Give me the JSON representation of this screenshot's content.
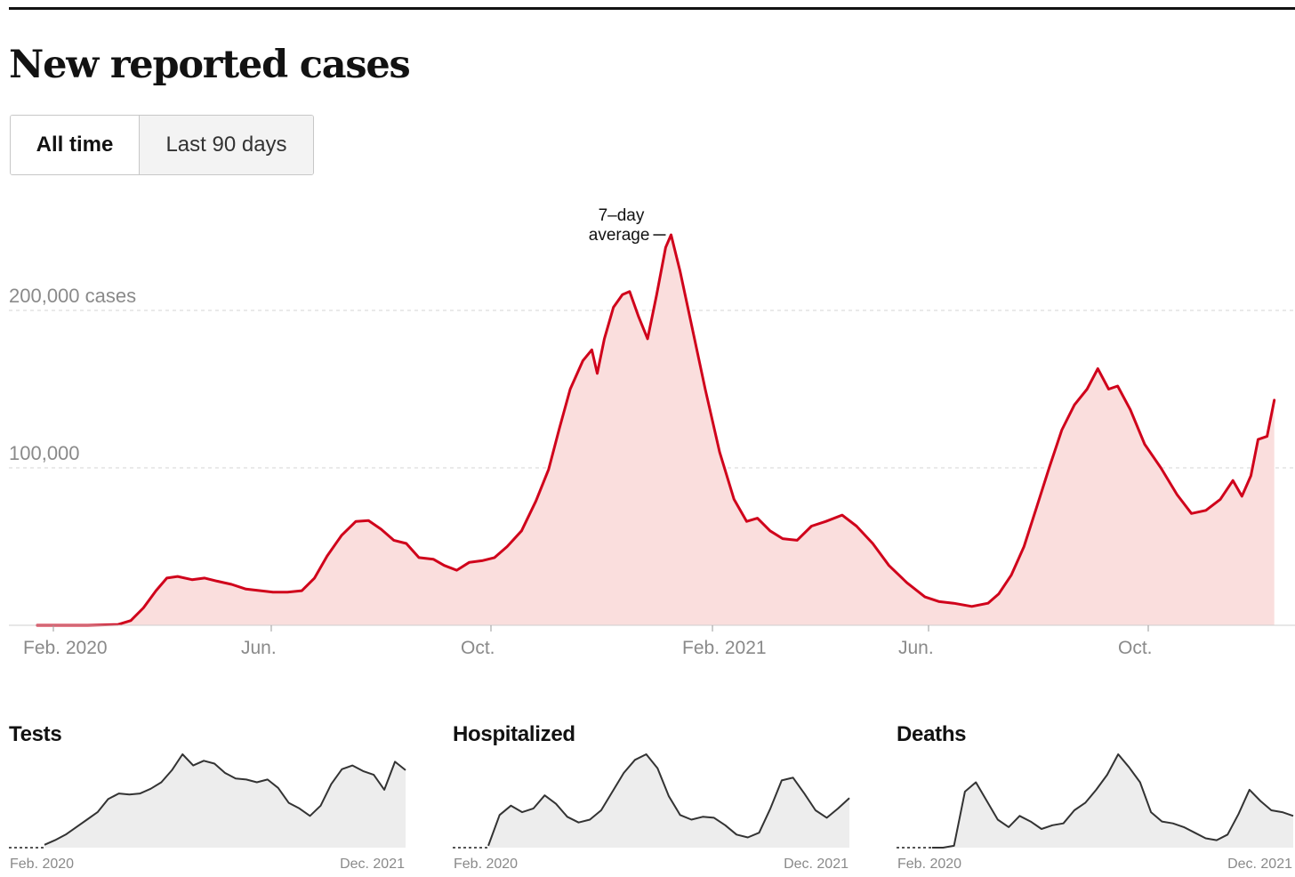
{
  "page": {
    "title": "New reported cases"
  },
  "toggle": {
    "options": [
      {
        "label": "All time",
        "active": true
      },
      {
        "label": "Last 90 days",
        "active": false
      }
    ]
  },
  "chart_data": [
    {
      "type": "area",
      "annotation": "7–day average",
      "y_unit": "cases",
      "ylim": [
        0,
        250000
      ],
      "y_ticks": [
        {
          "value": 100000,
          "label": "100,000"
        },
        {
          "value": 200000,
          "label": "200,000 cases"
        }
      ],
      "x_ticks": [
        {
          "date": "2020-02-01",
          "label": "Feb. 2020"
        },
        {
          "date": "2020-06-01",
          "label": "Jun."
        },
        {
          "date": "2020-10-01",
          "label": "Oct."
        },
        {
          "date": "2021-02-01",
          "label": "Feb. 2021"
        },
        {
          "date": "2021-06-01",
          "label": "Jun."
        },
        {
          "date": "2021-10-01",
          "label": "Oct."
        }
      ],
      "grid": "horizontal dashed",
      "colors": {
        "line": "#d0021b",
        "fill": "#fadedd"
      },
      "series": [
        {
          "points": [
            [
              "2020-01-23",
              0
            ],
            [
              "2020-02-20",
              0
            ],
            [
              "2020-03-08",
              500
            ],
            [
              "2020-03-15",
              3000
            ],
            [
              "2020-03-22",
              11000
            ],
            [
              "2020-03-29",
              22000
            ],
            [
              "2020-04-04",
              30000
            ],
            [
              "2020-04-10",
              31000
            ],
            [
              "2020-04-18",
              29000
            ],
            [
              "2020-04-25",
              30000
            ],
            [
              "2020-05-02",
              28000
            ],
            [
              "2020-05-10",
              26000
            ],
            [
              "2020-05-18",
              23000
            ],
            [
              "2020-05-26",
              22000
            ],
            [
              "2020-06-02",
              21000
            ],
            [
              "2020-06-10",
              21000
            ],
            [
              "2020-06-18",
              22000
            ],
            [
              "2020-06-25",
              30000
            ],
            [
              "2020-07-02",
              44000
            ],
            [
              "2020-07-10",
              57000
            ],
            [
              "2020-07-18",
              66000
            ],
            [
              "2020-07-25",
              66500
            ],
            [
              "2020-08-01",
              61000
            ],
            [
              "2020-08-08",
              54000
            ],
            [
              "2020-08-15",
              52000
            ],
            [
              "2020-08-22",
              43000
            ],
            [
              "2020-08-30",
              42000
            ],
            [
              "2020-09-05",
              38000
            ],
            [
              "2020-09-12",
              35000
            ],
            [
              "2020-09-19",
              40000
            ],
            [
              "2020-09-26",
              41000
            ],
            [
              "2020-10-03",
              43000
            ],
            [
              "2020-10-10",
              50000
            ],
            [
              "2020-10-18",
              60000
            ],
            [
              "2020-10-26",
              79000
            ],
            [
              "2020-11-02",
              99000
            ],
            [
              "2020-11-08",
              125000
            ],
            [
              "2020-11-14",
              150000
            ],
            [
              "2020-11-21",
              168000
            ],
            [
              "2020-11-26",
              175000
            ],
            [
              "2020-11-29",
              160000
            ],
            [
              "2020-12-03",
              182000
            ],
            [
              "2020-12-08",
              202000
            ],
            [
              "2020-12-13",
              210000
            ],
            [
              "2020-12-17",
              212000
            ],
            [
              "2020-12-22",
              196000
            ],
            [
              "2020-12-27",
              182000
            ],
            [
              "2021-01-01",
              210000
            ],
            [
              "2021-01-06",
              240000
            ],
            [
              "2021-01-09",
              248000
            ],
            [
              "2021-01-14",
              225000
            ],
            [
              "2021-01-20",
              193000
            ],
            [
              "2021-01-28",
              150000
            ],
            [
              "2021-02-05",
              110000
            ],
            [
              "2021-02-13",
              80000
            ],
            [
              "2021-02-20",
              66000
            ],
            [
              "2021-02-26",
              68000
            ],
            [
              "2021-03-05",
              60000
            ],
            [
              "2021-03-12",
              55000
            ],
            [
              "2021-03-20",
              54000
            ],
            [
              "2021-03-28",
              63000
            ],
            [
              "2021-04-05",
              66000
            ],
            [
              "2021-04-14",
              70000
            ],
            [
              "2021-04-22",
              63000
            ],
            [
              "2021-05-01",
              52000
            ],
            [
              "2021-05-10",
              38000
            ],
            [
              "2021-05-20",
              27000
            ],
            [
              "2021-05-30",
              18000
            ],
            [
              "2021-06-07",
              15000
            ],
            [
              "2021-06-15",
              14000
            ],
            [
              "2021-06-25",
              12000
            ],
            [
              "2021-07-04",
              14000
            ],
            [
              "2021-07-10",
              20000
            ],
            [
              "2021-07-17",
              32000
            ],
            [
              "2021-07-24",
              50000
            ],
            [
              "2021-07-31",
              75000
            ],
            [
              "2021-08-07",
              100000
            ],
            [
              "2021-08-14",
              124000
            ],
            [
              "2021-08-21",
              140000
            ],
            [
              "2021-08-28",
              150000
            ],
            [
              "2021-09-03",
              163000
            ],
            [
              "2021-09-09",
              150000
            ],
            [
              "2021-09-14",
              152000
            ],
            [
              "2021-09-21",
              137000
            ],
            [
              "2021-09-29",
              115000
            ],
            [
              "2021-10-08",
              100000
            ],
            [
              "2021-10-17",
              83000
            ],
            [
              "2021-10-25",
              71000
            ],
            [
              "2021-11-02",
              73000
            ],
            [
              "2021-11-10",
              80000
            ],
            [
              "2021-11-17",
              92000
            ],
            [
              "2021-11-22",
              82000
            ],
            [
              "2021-11-27",
              95000
            ],
            [
              "2021-12-01",
              118000
            ],
            [
              "2021-12-06",
              120000
            ],
            [
              "2021-12-10",
              143000
            ]
          ]
        }
      ]
    },
    {
      "type": "area",
      "title": "Tests",
      "x_ticks": [
        {
          "label": "Feb. 2020"
        },
        {
          "label": "Dec. 2021"
        }
      ],
      "colors": {
        "line": "#333333",
        "fill": "#ededed"
      },
      "series": [
        {
          "values": [
            0.03,
            0.08,
            0.14,
            0.22,
            0.3,
            0.38,
            0.52,
            0.58,
            0.57,
            0.58,
            0.63,
            0.7,
            0.83,
            1.0,
            0.88,
            0.93,
            0.9,
            0.8,
            0.74,
            0.73,
            0.7,
            0.73,
            0.64,
            0.48,
            0.42,
            0.34,
            0.45,
            0.68,
            0.84,
            0.88,
            0.82,
            0.78,
            0.62,
            0.92,
            0.83
          ]
        }
      ]
    },
    {
      "type": "area",
      "title": "Hospitalized",
      "x_ticks": [
        {
          "label": "Feb. 2020"
        },
        {
          "label": "Dec. 2021"
        }
      ],
      "colors": {
        "line": "#333333",
        "fill": "#ededed"
      },
      "series": [
        {
          "values": [
            0.02,
            0.35,
            0.45,
            0.38,
            0.42,
            0.56,
            0.47,
            0.33,
            0.27,
            0.3,
            0.4,
            0.6,
            0.8,
            0.94,
            1.0,
            0.85,
            0.55,
            0.35,
            0.3,
            0.33,
            0.32,
            0.24,
            0.14,
            0.11,
            0.16,
            0.42,
            0.72,
            0.75,
            0.58,
            0.4,
            0.32,
            0.42,
            0.53
          ]
        }
      ]
    },
    {
      "type": "area",
      "title": "Deaths",
      "x_ticks": [
        {
          "label": "Feb. 2020"
        },
        {
          "label": "Dec. 2021"
        }
      ],
      "colors": {
        "line": "#333333",
        "fill": "#ededed"
      },
      "series": [
        {
          "values": [
            0.0,
            0.0,
            0.02,
            0.6,
            0.7,
            0.5,
            0.3,
            0.22,
            0.34,
            0.28,
            0.2,
            0.24,
            0.26,
            0.4,
            0.48,
            0.62,
            0.78,
            1.0,
            0.86,
            0.7,
            0.38,
            0.28,
            0.26,
            0.22,
            0.16,
            0.1,
            0.08,
            0.14,
            0.36,
            0.62,
            0.5,
            0.4,
            0.38,
            0.34
          ]
        }
      ]
    }
  ]
}
